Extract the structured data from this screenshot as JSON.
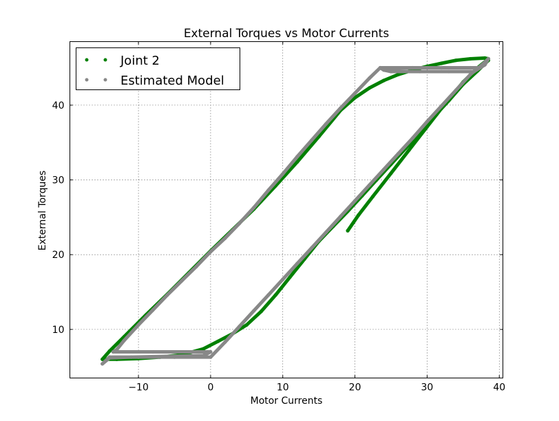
{
  "chart_data": {
    "type": "scatter",
    "title": "External Torques vs Motor Currents",
    "xlabel": "Motor Currents",
    "ylabel": "External Torques",
    "xlim": [
      -19.5,
      40.5
    ],
    "ylim": [
      3.5,
      48.5
    ],
    "xticks": [
      -10,
      0,
      10,
      20,
      30,
      40
    ],
    "yticks": [
      10,
      20,
      30,
      40
    ],
    "xtick_labels": [
      "−10",
      "0",
      "10",
      "20",
      "30",
      "40"
    ],
    "ytick_labels": [
      "10",
      "20",
      "30",
      "40"
    ],
    "grid": true,
    "legend_position": "top-left",
    "series": [
      {
        "name": "Joint 2",
        "color": "#008000",
        "points": [
          [
            19.0,
            23.2
          ],
          [
            20.5,
            25.3
          ],
          [
            22.5,
            27.8
          ],
          [
            25.0,
            30.9
          ],
          [
            27.5,
            34.0
          ],
          [
            30.0,
            37.1
          ],
          [
            32.5,
            40.2
          ],
          [
            35.0,
            43.1
          ],
          [
            37.0,
            45.0
          ],
          [
            38.5,
            46.2
          ],
          [
            38.0,
            46.3
          ],
          [
            36.0,
            46.2
          ],
          [
            34.0,
            46.0
          ],
          [
            32.0,
            45.6
          ],
          [
            30.0,
            45.2
          ],
          [
            28.0,
            44.7
          ],
          [
            26.0,
            44.1
          ],
          [
            24.0,
            43.3
          ],
          [
            22.0,
            42.3
          ],
          [
            20.0,
            41.0
          ],
          [
            18.0,
            39.3
          ],
          [
            15.0,
            35.8
          ],
          [
            12.0,
            32.4
          ],
          [
            9.0,
            29.2
          ],
          [
            6.0,
            26.1
          ],
          [
            3.0,
            23.3
          ],
          [
            0.0,
            20.5
          ],
          [
            -3.0,
            17.6
          ],
          [
            -6.0,
            14.7
          ],
          [
            -9.0,
            11.9
          ],
          [
            -12.0,
            9.0
          ],
          [
            -14.0,
            7.1
          ],
          [
            -15.0,
            6.0
          ],
          [
            -13.0,
            6.0
          ],
          [
            -10.0,
            6.1
          ],
          [
            -7.0,
            6.3
          ],
          [
            -4.0,
            6.6
          ],
          [
            -1.0,
            7.4
          ],
          [
            1.0,
            8.4
          ],
          [
            3.0,
            9.4
          ],
          [
            5.0,
            10.6
          ],
          [
            7.0,
            12.4
          ],
          [
            9.0,
            14.6
          ],
          [
            11.0,
            17.0
          ],
          [
            13.0,
            19.4
          ],
          [
            15.0,
            21.8
          ],
          [
            17.0,
            23.8
          ],
          [
            19.0,
            25.8
          ],
          [
            21.0,
            27.9
          ],
          [
            23.0,
            30.0
          ],
          [
            25.0,
            32.1
          ],
          [
            27.0,
            34.2
          ],
          [
            29.0,
            36.3
          ],
          [
            31.0,
            38.5
          ],
          [
            33.0,
            40.6
          ],
          [
            35.0,
            42.8
          ],
          [
            37.0,
            44.6
          ],
          [
            38.5,
            46.0
          ]
        ]
      },
      {
        "name": "Estimated Model",
        "color": "#888888",
        "points": [
          [
            38.5,
            46.2
          ],
          [
            38.0,
            45.4
          ],
          [
            36.5,
            44.5
          ],
          [
            33.0,
            44.5
          ],
          [
            29.0,
            44.5
          ],
          [
            25.0,
            44.5
          ],
          [
            24.0,
            44.7
          ],
          [
            23.5,
            45.0
          ],
          [
            24.0,
            44.9
          ],
          [
            28.0,
            45.0
          ],
          [
            32.0,
            45.0
          ],
          [
            36.0,
            45.0
          ],
          [
            37.0,
            45.0
          ],
          [
            23.5,
            45.0
          ],
          [
            22.0,
            43.6
          ],
          [
            20.0,
            41.6
          ],
          [
            18.0,
            39.6
          ],
          [
            16.0,
            37.5
          ],
          [
            14.0,
            35.3
          ],
          [
            12.0,
            33.1
          ],
          [
            10.0,
            30.8
          ],
          [
            8.0,
            28.6
          ],
          [
            6.0,
            26.3
          ],
          [
            4.0,
            24.2
          ],
          [
            2.0,
            22.2
          ],
          [
            0.0,
            20.4
          ],
          [
            -2.0,
            18.4
          ],
          [
            -4.0,
            16.5
          ],
          [
            -6.0,
            14.6
          ],
          [
            -8.0,
            12.6
          ],
          [
            -10.0,
            10.6
          ],
          [
            -12.0,
            8.5
          ],
          [
            -13.0,
            7.3
          ],
          [
            -13.5,
            7.0
          ],
          [
            -8.0,
            7.0
          ],
          [
            -3.0,
            7.0
          ],
          [
            0.0,
            7.0
          ],
          [
            -1.0,
            6.5
          ],
          [
            -6.0,
            6.4
          ],
          [
            -11.0,
            6.3
          ],
          [
            -14.0,
            6.2
          ],
          [
            -15.0,
            5.4
          ],
          [
            -14.0,
            6.3
          ],
          [
            -10.0,
            6.3
          ],
          [
            -5.0,
            6.3
          ],
          [
            0.0,
            6.3
          ],
          [
            2.0,
            8.3
          ],
          [
            4.0,
            10.4
          ],
          [
            6.0,
            12.5
          ],
          [
            8.0,
            14.6
          ],
          [
            10.0,
            16.7
          ],
          [
            12.0,
            18.8
          ],
          [
            14.0,
            20.9
          ],
          [
            16.0,
            23.0
          ],
          [
            18.0,
            25.1
          ],
          [
            20.0,
            27.2
          ],
          [
            22.0,
            29.3
          ],
          [
            24.0,
            31.4
          ],
          [
            26.0,
            33.5
          ],
          [
            28.0,
            35.6
          ],
          [
            30.0,
            37.8
          ],
          [
            32.0,
            39.9
          ],
          [
            34.0,
            42.0
          ],
          [
            36.0,
            44.1
          ],
          [
            37.5,
            45.3
          ],
          [
            38.5,
            46.2
          ]
        ]
      }
    ]
  }
}
